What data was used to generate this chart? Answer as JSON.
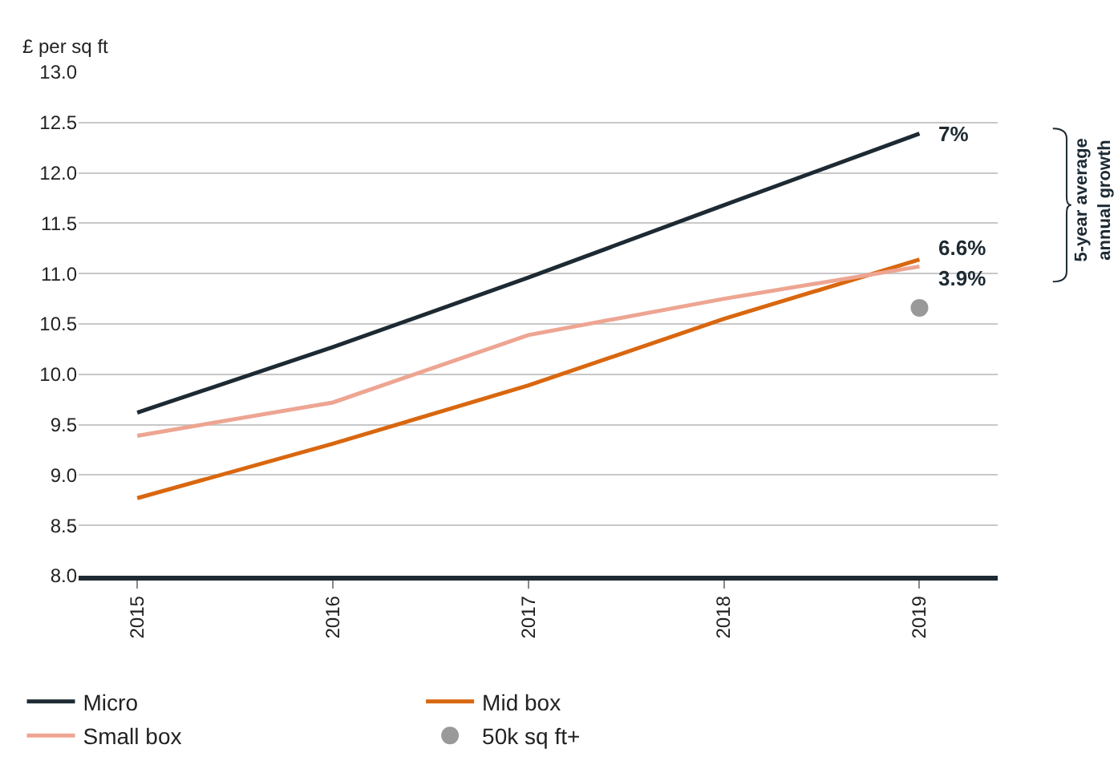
{
  "chart_data": {
    "type": "line",
    "ylabel": "£ per sq ft",
    "categories": [
      "2015",
      "2016",
      "2017",
      "2018",
      "2019"
    ],
    "series": [
      {
        "name": "Micro",
        "color": "#1d2a33",
        "values": [
          9.62,
          10.27,
          10.96,
          11.68,
          12.39
        ]
      },
      {
        "name": "Mid box",
        "color": "#d9670f",
        "values": [
          8.77,
          9.31,
          9.89,
          10.55,
          11.14
        ]
      },
      {
        "name": "Small box",
        "color": "#eda592",
        "values": [
          9.39,
          9.72,
          10.39,
          10.75,
          11.07
        ]
      },
      {
        "name": "50k sq ft+",
        "type": "scatter",
        "marker": "circle",
        "color": "#999999",
        "values": [
          null,
          null,
          null,
          null,
          10.66
        ]
      }
    ],
    "ylim": [
      8.0,
      13.0
    ],
    "yticks": [
      {
        "value": 8,
        "label": "8.0"
      },
      8.5,
      {
        "value": 9,
        "label": "9.0"
      },
      9.5,
      {
        "value": 10,
        "label": "10.0"
      },
      10.5,
      {
        "value": 11,
        "label": "11.0"
      },
      11.5,
      {
        "value": 12,
        "label": "12.0"
      },
      12.5,
      {
        "value": 13,
        "label": "13.0"
      }
    ],
    "grid": "y",
    "legend": "bottom",
    "line_style": "solid",
    "annotations": [
      {
        "text": "7%",
        "x": "2019",
        "y": 12.39
      },
      {
        "text": "6.6%",
        "x": "2019",
        "y": 11.14
      },
      {
        "text": "3.9%",
        "x": "2019",
        "y": 11.07
      },
      "5-year average annual growth"
    ]
  }
}
